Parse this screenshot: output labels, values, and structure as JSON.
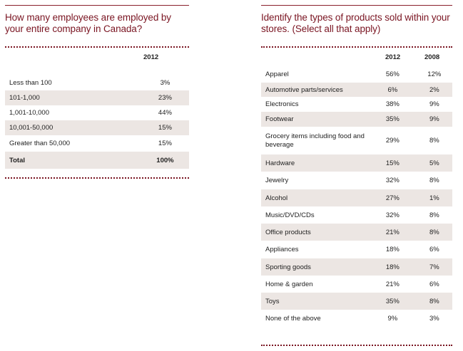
{
  "left": {
    "question": "How many employees are employed by your entire company in Canada?",
    "col_2012": "2012",
    "rows": [
      {
        "label": "Less than 100",
        "v2012": "3%"
      },
      {
        "label": "101-1,000",
        "v2012": "23%"
      },
      {
        "label": "1,001-10,000",
        "v2012": "44%"
      },
      {
        "label": "10,001-50,000",
        "v2012": "15%"
      },
      {
        "label": "Greater than 50,000",
        "v2012": "15%"
      },
      {
        "label": "Total",
        "v2012": "100%"
      }
    ]
  },
  "right": {
    "question": "Identify the types of products sold within your stores. (Select all that apply)",
    "col_2012": "2012",
    "col_2008": "2008",
    "rows": [
      {
        "label": "Apparel",
        "v2012": "56%",
        "v2008": "12%"
      },
      {
        "label": "Automotive parts/services",
        "v2012": "6%",
        "v2008": "2%"
      },
      {
        "label": "Electronics",
        "v2012": "38%",
        "v2008": "9%"
      },
      {
        "label": "Footwear",
        "v2012": "35%",
        "v2008": "9%"
      },
      {
        "label": "Grocery items including food and beverage",
        "v2012": "29%",
        "v2008": "8%"
      },
      {
        "label": "Hardware",
        "v2012": "15%",
        "v2008": "5%"
      },
      {
        "label": "Jewelry",
        "v2012": "32%",
        "v2008": "8%"
      },
      {
        "label": "Alcohol",
        "v2012": "27%",
        "v2008": "1%"
      },
      {
        "label": "Music/DVD/CDs",
        "v2012": "32%",
        "v2008": "8%"
      },
      {
        "label": "Office products",
        "v2012": "21%",
        "v2008": "8%"
      },
      {
        "label": "Appliances",
        "v2012": "18%",
        "v2008": "6%"
      },
      {
        "label": "Sporting goods",
        "v2012": "18%",
        "v2008": "7%"
      },
      {
        "label": "Home & garden",
        "v2012": "21%",
        "v2008": "6%"
      },
      {
        "label": "Toys",
        "v2012": "35%",
        "v2008": "8%"
      },
      {
        "label": "None of the above",
        "v2012": "9%",
        "v2008": "3%"
      }
    ]
  }
}
